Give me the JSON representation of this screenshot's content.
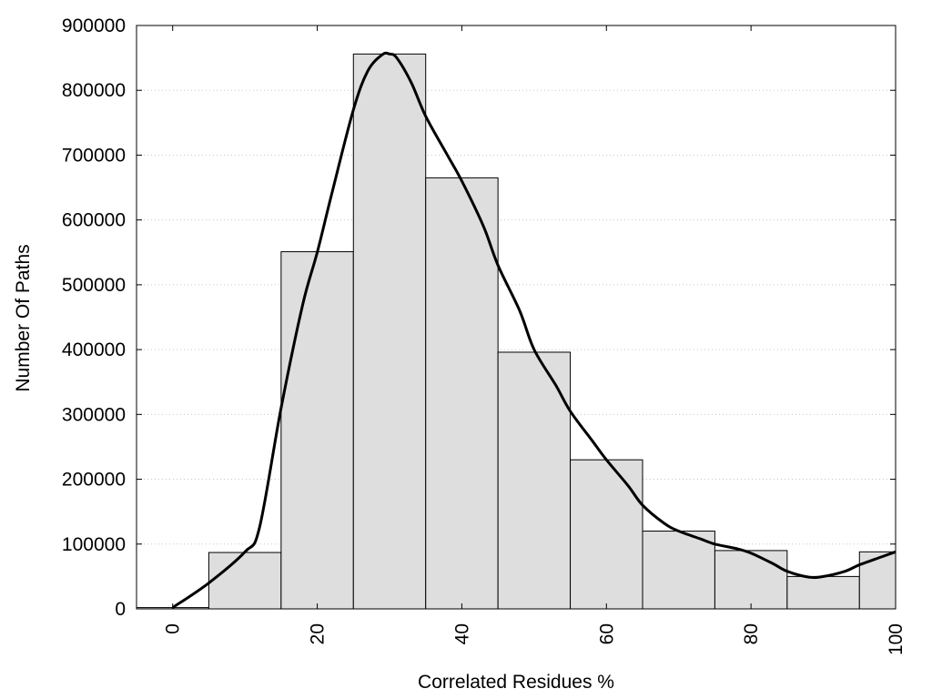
{
  "chart_data": {
    "type": "bar",
    "title": "",
    "xlabel": "Correlated Residues %",
    "ylabel": "Number Of Paths",
    "xlim": [
      -5,
      100
    ],
    "ylim": [
      0,
      900000
    ],
    "bin_width": 10,
    "x_ticks": [
      0,
      20,
      40,
      60,
      80,
      100
    ],
    "y_ticks": [
      0,
      100000,
      200000,
      300000,
      400000,
      500000,
      600000,
      700000,
      800000,
      900000
    ],
    "grid": "horizontal-dotted",
    "legend": "none",
    "bar_color": "#dedede",
    "bars": [
      {
        "x": 0,
        "value": 2000
      },
      {
        "x": 10,
        "value": 87000
      },
      {
        "x": 20,
        "value": 551000
      },
      {
        "x": 30,
        "value": 856000
      },
      {
        "x": 40,
        "value": 665000
      },
      {
        "x": 50,
        "value": 396000
      },
      {
        "x": 60,
        "value": 230000
      },
      {
        "x": 70,
        "value": 120000
      },
      {
        "x": 80,
        "value": 90000
      },
      {
        "x": 90,
        "value": 50000
      },
      {
        "x": 100,
        "value": 88000
      }
    ],
    "density_curve": {
      "x": [
        0,
        5,
        10,
        12,
        15,
        18,
        20,
        22,
        25,
        27,
        29,
        30,
        31,
        33,
        35,
        38,
        40,
        43,
        45,
        48,
        50,
        53,
        55,
        58,
        60,
        63,
        65,
        68,
        70,
        73,
        75,
        78,
        80,
        83,
        85,
        88,
        90,
        93,
        95,
        98,
        100
      ],
      "y": [
        2000,
        40000,
        88000,
        125000,
        310000,
        470000,
        550000,
        640000,
        770000,
        830000,
        855000,
        856000,
        850000,
        812000,
        760000,
        700000,
        660000,
        590000,
        530000,
        460000,
        400000,
        345000,
        305000,
        260000,
        230000,
        190000,
        160000,
        132000,
        120000,
        108000,
        100000,
        93000,
        86000,
        70000,
        58000,
        49000,
        50000,
        58000,
        68000,
        80000,
        88000
      ]
    }
  }
}
